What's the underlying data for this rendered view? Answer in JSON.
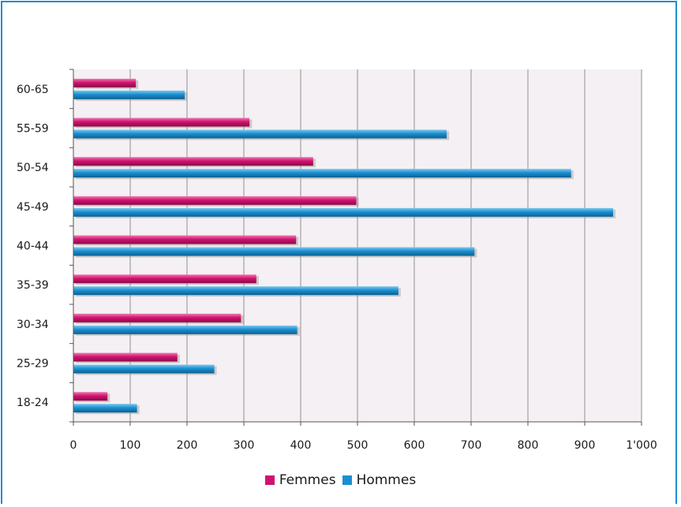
{
  "chart_data": {
    "type": "bar",
    "orientation": "horizontal",
    "categories": [
      "60-65",
      "55-59",
      "50-54",
      "45-49",
      "40-44",
      "35-39",
      "30-34",
      "25-29",
      "18-24"
    ],
    "series": [
      {
        "name": "Femmes",
        "color": "#d0136f",
        "values": [
          110,
          310,
          422,
          498,
          392,
          322,
          295,
          183,
          60
        ]
      },
      {
        "name": "Hommes",
        "color": "#1a8fd0",
        "values": [
          196,
          657,
          876,
          950,
          706,
          572,
          394,
          248,
          112
        ]
      }
    ],
    "xlim": [
      0,
      1000
    ],
    "xticks": [
      "0",
      "100",
      "200",
      "300",
      "400",
      "500",
      "600",
      "700",
      "800",
      "900",
      "1'000"
    ],
    "grid": true,
    "legend_position": "bottom"
  }
}
